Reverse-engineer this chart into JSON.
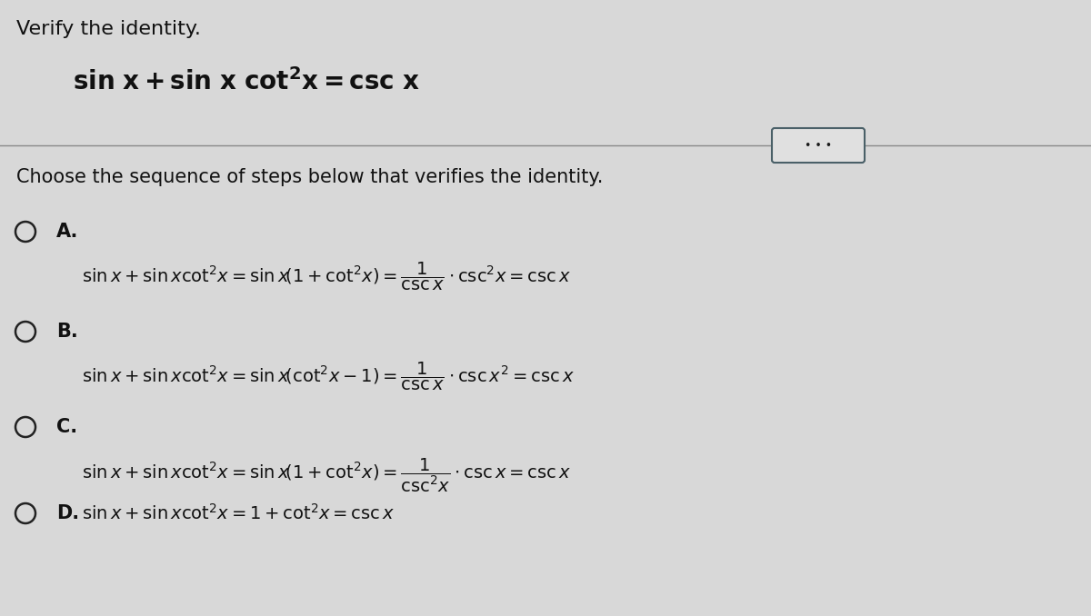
{
  "background_color": "#d8d8d8",
  "text_color": "#111111",
  "circle_color": "#222222",
  "title_text": "Verify the identity.",
  "identity": "sin x + sin x cot^2 x = csc x",
  "question_text": "Choose the sequence of steps below that verifies the identity.",
  "option_A_label": "A.",
  "option_A_eq1": "sin x + sin x cot^{2}\\!x = sin x\\left(1 + cot^{2}\\!x\\right) =",
  "option_A_frac": "\\frac{1}{\\csc x}",
  "option_A_eq2": "\\cdot \\csc^{2}\\!x = \\csc x",
  "option_B_label": "B.",
  "option_C_label": "C.",
  "option_D_label": "D.",
  "dots_button_color": "#4a6068",
  "dots_bg": "#e0e0e0",
  "font_size_title": 16,
  "font_size_identity": 20,
  "font_size_question": 15,
  "font_size_options": 14,
  "font_size_label": 15
}
